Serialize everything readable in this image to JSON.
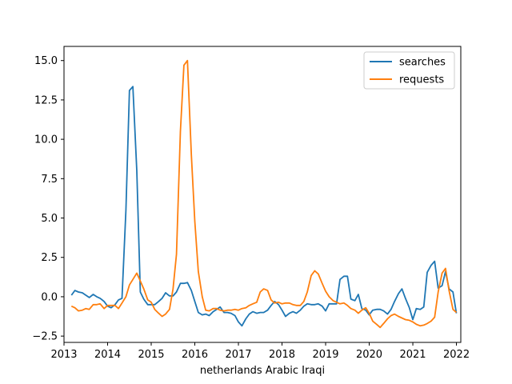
{
  "chart_data": {
    "type": "line",
    "title": "",
    "xlabel": "netherlands Arabic  Iraqi",
    "ylabel": "",
    "xlim": [
      2013.0,
      2022.1
    ],
    "ylim": [
      -2.9,
      15.9
    ],
    "x_ticks": [
      "2013",
      "2014",
      "2015",
      "2016",
      "2017",
      "2018",
      "2019",
      "2020",
      "2021",
      "2022"
    ],
    "y_ticks": [
      "−2.5",
      "0.0",
      "2.5",
      "5.0",
      "7.5",
      "10.0",
      "12.5",
      "15.0"
    ],
    "grid": false,
    "legend_position": "top-right",
    "series": [
      {
        "name": "searches",
        "color": "#1f77b4",
        "points": [
          [
            2013.17,
            0.1
          ],
          [
            2013.25,
            0.4
          ],
          [
            2013.33,
            0.3
          ],
          [
            2013.42,
            0.25
          ],
          [
            2013.5,
            0.1
          ],
          [
            2013.58,
            -0.05
          ],
          [
            2013.67,
            0.15
          ],
          [
            2013.75,
            0.0
          ],
          [
            2013.83,
            -0.1
          ],
          [
            2013.92,
            -0.3
          ],
          [
            2014.0,
            -0.6
          ],
          [
            2014.08,
            -0.7
          ],
          [
            2014.17,
            -0.5
          ],
          [
            2014.25,
            -0.2
          ],
          [
            2014.33,
            -0.1
          ],
          [
            2014.42,
            5.5
          ],
          [
            2014.5,
            13.1
          ],
          [
            2014.58,
            13.35
          ],
          [
            2014.67,
            8.0
          ],
          [
            2014.75,
            0.3
          ],
          [
            2014.83,
            -0.15
          ],
          [
            2014.92,
            -0.5
          ],
          [
            2015.0,
            -0.5
          ],
          [
            2015.08,
            -0.5
          ],
          [
            2015.17,
            -0.3
          ],
          [
            2015.25,
            -0.1
          ],
          [
            2015.33,
            0.25
          ],
          [
            2015.42,
            0.05
          ],
          [
            2015.5,
            0.05
          ],
          [
            2015.58,
            0.3
          ],
          [
            2015.67,
            0.85
          ],
          [
            2015.75,
            0.85
          ],
          [
            2015.83,
            0.9
          ],
          [
            2015.92,
            0.4
          ],
          [
            2016.0,
            -0.3
          ],
          [
            2016.08,
            -1.0
          ],
          [
            2016.17,
            -1.15
          ],
          [
            2016.25,
            -1.1
          ],
          [
            2016.33,
            -1.2
          ],
          [
            2016.42,
            -0.95
          ],
          [
            2016.5,
            -0.8
          ],
          [
            2016.58,
            -0.65
          ],
          [
            2016.67,
            -1.0
          ],
          [
            2016.75,
            -1.0
          ],
          [
            2016.83,
            -1.05
          ],
          [
            2016.92,
            -1.2
          ],
          [
            2017.0,
            -1.6
          ],
          [
            2017.08,
            -1.85
          ],
          [
            2017.17,
            -1.4
          ],
          [
            2017.25,
            -1.1
          ],
          [
            2017.33,
            -0.95
          ],
          [
            2017.42,
            -1.05
          ],
          [
            2017.5,
            -1.0
          ],
          [
            2017.58,
            -1.0
          ],
          [
            2017.67,
            -0.85
          ],
          [
            2017.75,
            -0.55
          ],
          [
            2017.83,
            -0.3
          ],
          [
            2017.92,
            -0.5
          ],
          [
            2018.0,
            -0.85
          ],
          [
            2018.08,
            -1.25
          ],
          [
            2018.17,
            -1.05
          ],
          [
            2018.25,
            -0.95
          ],
          [
            2018.33,
            -1.05
          ],
          [
            2018.42,
            -0.85
          ],
          [
            2018.5,
            -0.6
          ],
          [
            2018.58,
            -0.45
          ],
          [
            2018.67,
            -0.5
          ],
          [
            2018.75,
            -0.5
          ],
          [
            2018.83,
            -0.45
          ],
          [
            2018.92,
            -0.6
          ],
          [
            2019.0,
            -0.9
          ],
          [
            2019.08,
            -0.45
          ],
          [
            2019.17,
            -0.45
          ],
          [
            2019.25,
            -0.45
          ],
          [
            2019.33,
            1.1
          ],
          [
            2019.42,
            1.3
          ],
          [
            2019.5,
            1.3
          ],
          [
            2019.58,
            -0.15
          ],
          [
            2019.67,
            -0.25
          ],
          [
            2019.75,
            0.15
          ],
          [
            2019.83,
            -0.75
          ],
          [
            2019.92,
            -0.85
          ],
          [
            2020.0,
            -1.15
          ],
          [
            2020.08,
            -0.85
          ],
          [
            2020.17,
            -0.8
          ],
          [
            2020.25,
            -0.8
          ],
          [
            2020.33,
            -0.9
          ],
          [
            2020.42,
            -1.1
          ],
          [
            2020.5,
            -0.8
          ],
          [
            2020.58,
            -0.3
          ],
          [
            2020.67,
            0.2
          ],
          [
            2020.75,
            0.5
          ],
          [
            2020.83,
            -0.1
          ],
          [
            2020.92,
            -0.7
          ],
          [
            2021.0,
            -1.45
          ],
          [
            2021.08,
            -0.75
          ],
          [
            2021.17,
            -0.8
          ],
          [
            2021.25,
            -0.65
          ],
          [
            2021.33,
            1.55
          ],
          [
            2021.42,
            2.0
          ],
          [
            2021.5,
            2.25
          ],
          [
            2021.58,
            0.55
          ],
          [
            2021.67,
            0.7
          ],
          [
            2021.75,
            1.6
          ],
          [
            2021.83,
            0.5
          ],
          [
            2021.92,
            0.3
          ],
          [
            2022.0,
            -1.05
          ]
        ]
      },
      {
        "name": "requests",
        "color": "#ff7f0e",
        "points": [
          [
            2013.17,
            -0.6
          ],
          [
            2013.25,
            -0.7
          ],
          [
            2013.33,
            -0.9
          ],
          [
            2013.42,
            -0.85
          ],
          [
            2013.5,
            -0.75
          ],
          [
            2013.58,
            -0.8
          ],
          [
            2013.67,
            -0.5
          ],
          [
            2013.75,
            -0.5
          ],
          [
            2013.83,
            -0.45
          ],
          [
            2013.92,
            -0.75
          ],
          [
            2014.0,
            -0.55
          ],
          [
            2014.08,
            -0.55
          ],
          [
            2014.17,
            -0.55
          ],
          [
            2014.25,
            -0.75
          ],
          [
            2014.33,
            -0.4
          ],
          [
            2014.42,
            0.0
          ],
          [
            2014.5,
            0.75
          ],
          [
            2014.58,
            1.1
          ],
          [
            2014.67,
            1.5
          ],
          [
            2014.75,
            1.0
          ],
          [
            2014.83,
            0.5
          ],
          [
            2014.92,
            -0.2
          ],
          [
            2015.0,
            -0.35
          ],
          [
            2015.08,
            -0.8
          ],
          [
            2015.17,
            -1.05
          ],
          [
            2015.25,
            -1.25
          ],
          [
            2015.33,
            -1.1
          ],
          [
            2015.42,
            -0.8
          ],
          [
            2015.5,
            0.5
          ],
          [
            2015.58,
            2.7
          ],
          [
            2015.67,
            10.5
          ],
          [
            2015.75,
            14.7
          ],
          [
            2015.83,
            15.0
          ],
          [
            2015.92,
            9.0
          ],
          [
            2016.0,
            4.8
          ],
          [
            2016.08,
            1.6
          ],
          [
            2016.17,
            0.0
          ],
          [
            2016.25,
            -0.85
          ],
          [
            2016.33,
            -0.9
          ],
          [
            2016.42,
            -0.75
          ],
          [
            2016.5,
            -0.75
          ],
          [
            2016.58,
            -0.85
          ],
          [
            2016.67,
            -0.9
          ],
          [
            2016.75,
            -0.85
          ],
          [
            2016.83,
            -0.85
          ],
          [
            2016.92,
            -0.8
          ],
          [
            2017.0,
            -0.85
          ],
          [
            2017.08,
            -0.75
          ],
          [
            2017.17,
            -0.7
          ],
          [
            2017.25,
            -0.55
          ],
          [
            2017.33,
            -0.45
          ],
          [
            2017.42,
            -0.35
          ],
          [
            2017.5,
            0.3
          ],
          [
            2017.58,
            0.5
          ],
          [
            2017.67,
            0.4
          ],
          [
            2017.75,
            -0.2
          ],
          [
            2017.83,
            -0.4
          ],
          [
            2017.92,
            -0.35
          ],
          [
            2018.0,
            -0.45
          ],
          [
            2018.08,
            -0.4
          ],
          [
            2018.17,
            -0.4
          ],
          [
            2018.25,
            -0.5
          ],
          [
            2018.33,
            -0.55
          ],
          [
            2018.42,
            -0.55
          ],
          [
            2018.5,
            -0.3
          ],
          [
            2018.58,
            0.3
          ],
          [
            2018.67,
            1.35
          ],
          [
            2018.75,
            1.65
          ],
          [
            2018.83,
            1.45
          ],
          [
            2018.92,
            0.85
          ],
          [
            2019.0,
            0.35
          ],
          [
            2019.08,
            0.0
          ],
          [
            2019.17,
            -0.25
          ],
          [
            2019.25,
            -0.35
          ],
          [
            2019.33,
            -0.45
          ],
          [
            2019.42,
            -0.4
          ],
          [
            2019.5,
            -0.55
          ],
          [
            2019.58,
            -0.75
          ],
          [
            2019.67,
            -0.85
          ],
          [
            2019.75,
            -1.05
          ],
          [
            2019.83,
            -0.85
          ],
          [
            2019.92,
            -0.7
          ],
          [
            2020.0,
            -1.05
          ],
          [
            2020.08,
            -1.55
          ],
          [
            2020.17,
            -1.75
          ],
          [
            2020.25,
            -1.95
          ],
          [
            2020.33,
            -1.7
          ],
          [
            2020.42,
            -1.4
          ],
          [
            2020.5,
            -1.2
          ],
          [
            2020.58,
            -1.1
          ],
          [
            2020.67,
            -1.25
          ],
          [
            2020.75,
            -1.35
          ],
          [
            2020.83,
            -1.45
          ],
          [
            2020.92,
            -1.5
          ],
          [
            2021.0,
            -1.6
          ],
          [
            2021.08,
            -1.75
          ],
          [
            2021.17,
            -1.85
          ],
          [
            2021.25,
            -1.8
          ],
          [
            2021.33,
            -1.7
          ],
          [
            2021.42,
            -1.55
          ],
          [
            2021.5,
            -1.3
          ],
          [
            2021.58,
            0.3
          ],
          [
            2021.67,
            1.5
          ],
          [
            2021.75,
            1.8
          ],
          [
            2021.83,
            0.4
          ],
          [
            2021.92,
            -0.8
          ],
          [
            2022.0,
            -1.0
          ]
        ]
      }
    ]
  }
}
